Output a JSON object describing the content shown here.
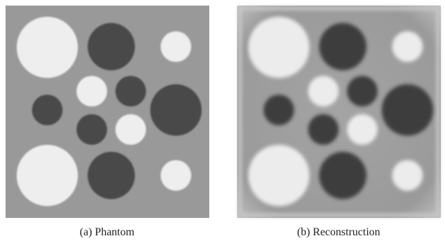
{
  "figure": {
    "panels": [
      {
        "caption": "(a) Phantom"
      },
      {
        "caption": "(b) Reconstruction"
      }
    ]
  }
}
